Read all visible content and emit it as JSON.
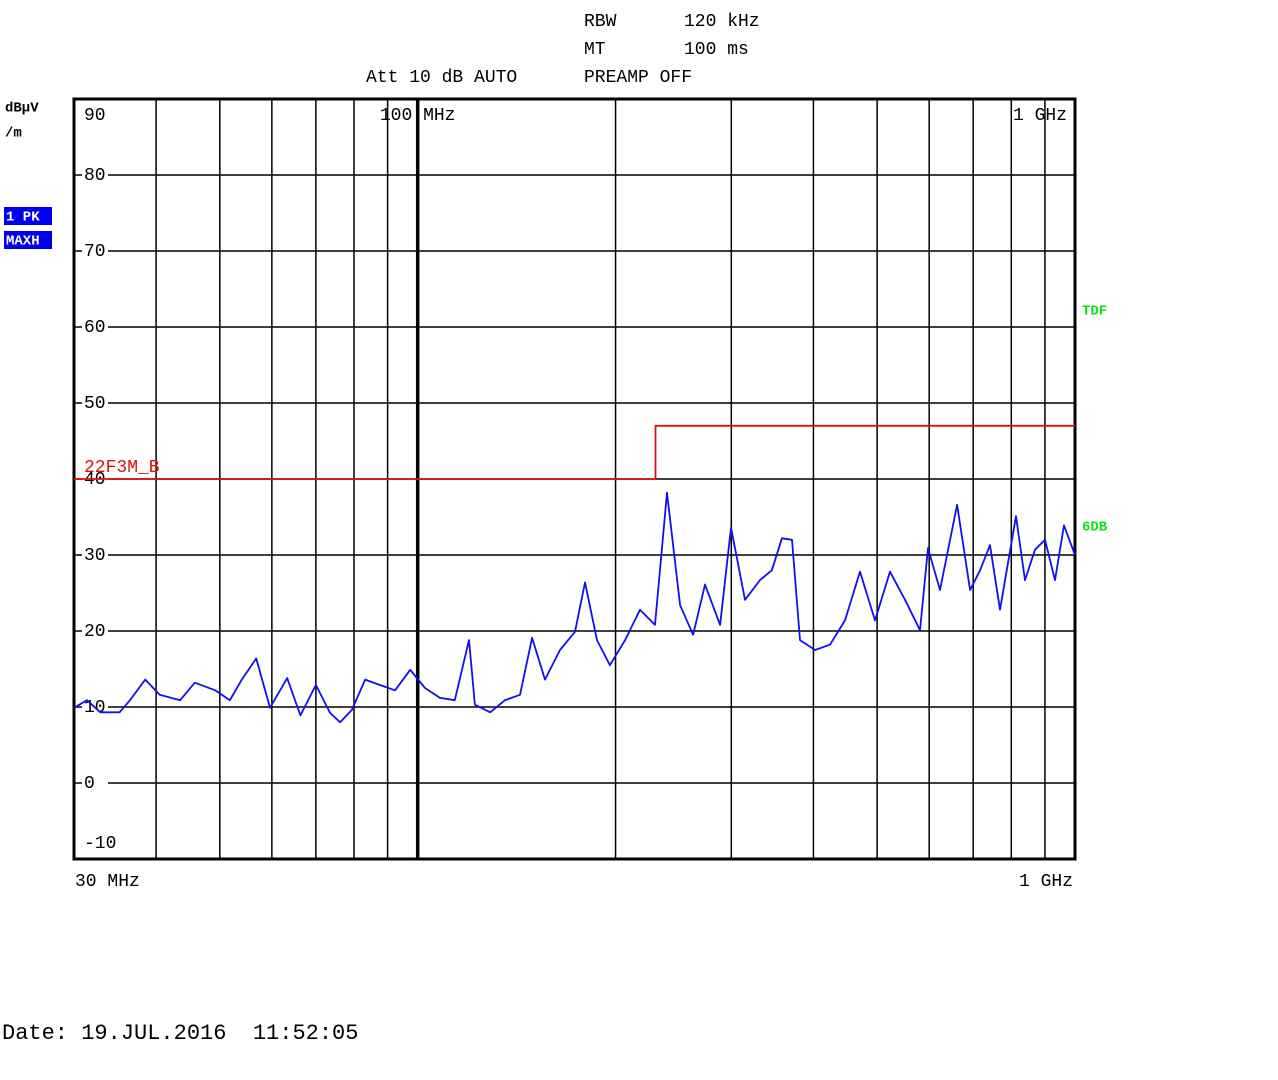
{
  "chart_data": {
    "type": "line",
    "header": {
      "rbw_label": "RBW",
      "rbw_value": "120 kHz",
      "mt_label": "MT",
      "mt_value": "100 ms",
      "att": "Att 10 dB AUTO",
      "preamp": "PREAMP OFF"
    },
    "y_unit": [
      "dBµV",
      "/m"
    ],
    "trace_badges": [
      "1 PK",
      "MAXH"
    ],
    "right_labels": [
      "TDF",
      "6DB"
    ],
    "date": "Date: 19.JUL.2016  11:52:05",
    "log_x": true,
    "grid": true,
    "xlim": [
      30,
      1000
    ],
    "ylim": [
      -10,
      90
    ],
    "yticks": [
      90,
      80,
      70,
      60,
      50,
      40,
      30,
      20,
      10,
      0,
      -10
    ],
    "xticks": [
      {
        "value": 30,
        "label": "30 MHz"
      },
      {
        "value": 1000,
        "label": "1 GHz"
      }
    ],
    "x_top_ticks": [
      {
        "value": 100,
        "label": "100 MHz"
      },
      {
        "value": 1000,
        "label": "1 GHz"
      }
    ],
    "x_grid": [
      40,
      50,
      60,
      70,
      80,
      90,
      100,
      200,
      300,
      400,
      500,
      600,
      700,
      800,
      900
    ],
    "series": [
      {
        "color": "#1010f0",
        "x": [
          30,
          31.4,
          32.9,
          35.2,
          36.5,
          38.5,
          40.5,
          43.5,
          45.8,
          49.2,
          51.8,
          54,
          56.8,
          59.6,
          63.3,
          66.3,
          70,
          73.6,
          76.2,
          79.4,
          83.2,
          87.6,
          92.4,
          97.4,
          102.6,
          108.1,
          113.9,
          119.7,
          122.2,
          128.9,
          135.8,
          143.1,
          149.3,
          156.2,
          164.6,
          173.5,
          179.7,
          187.4,
          196.1,
          206.8,
          217.9,
          229.6,
          239.5,
          250.7,
          262.4,
          273.6,
          288.4,
          299.7,
          314.7,
          331.7,
          345.9,
          358.2,
          371.1,
          381.6,
          402.3,
          423.9,
          446.8,
          470.9,
          496.3,
          523,
          551.3,
          581,
          597.5,
          623.2,
          661.6,
          692.4,
          717.1,
          742.6,
          768.9,
          813.4,
          839.4,
          869.2,
          900.2,
          932.3,
          962.3,
          1000
        ],
        "values": [
          9.9,
          10.9,
          9.3,
          9.3,
          10.9,
          13.6,
          11.6,
          10.9,
          13.2,
          12.2,
          10.9,
          13.6,
          16.4,
          9.9,
          13.8,
          8.9,
          12.9,
          9.2,
          8,
          9.6,
          13.6,
          12.9,
          12.2,
          14.9,
          12.5,
          11.2,
          10.9,
          18.8,
          10.3,
          9.3,
          10.9,
          11.6,
          19.1,
          13.6,
          17.5,
          19.9,
          26.4,
          18.8,
          15.5,
          18.8,
          22.8,
          20.8,
          38.2,
          23.4,
          19.5,
          26.1,
          20.8,
          33.6,
          24.1,
          26.7,
          28,
          32.2,
          32,
          18.8,
          17.5,
          18.2,
          21.4,
          27.8,
          21.4,
          27.8,
          24.1,
          20.1,
          30.9,
          25.4,
          36.6,
          25.4,
          28,
          31.3,
          22.8,
          35.1,
          26.7,
          30.7,
          32,
          26.7,
          33.9,
          30
        ]
      },
      {
        "name": "22F3M_B",
        "color": "#e01010",
        "x": [
          30,
          230,
          230,
          1000
        ],
        "values": [
          40,
          40,
          47,
          47
        ]
      }
    ]
  }
}
